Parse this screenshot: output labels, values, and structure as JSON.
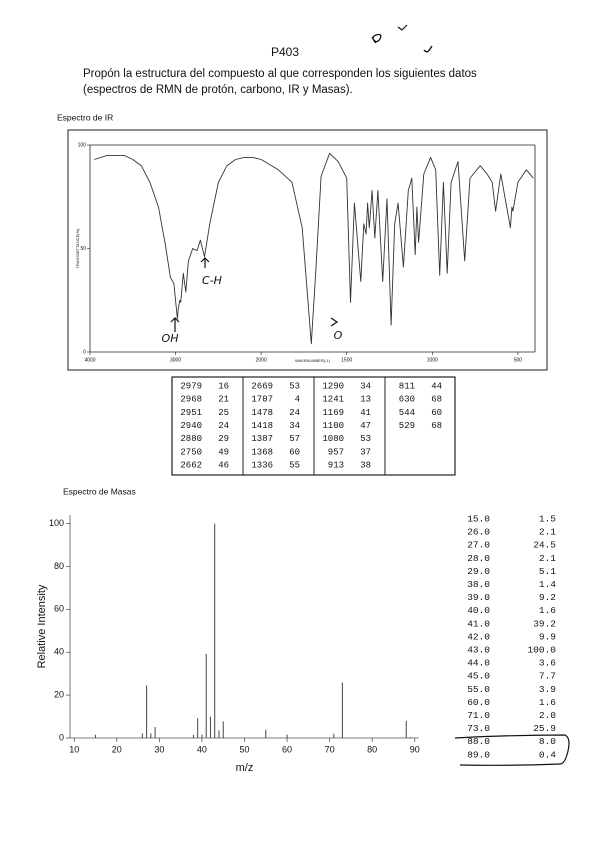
{
  "header": {
    "code": "P403"
  },
  "intro": {
    "lines": [
      "Propón la estructura del compuesto al que corresponden los siguientes datos",
      "(espectros de RMN de protón, carbono, IR y Masas)."
    ]
  },
  "ir_section": {
    "title": "Espectro de IR"
  },
  "mass_section": {
    "title": "Espectro de Masas"
  },
  "chart_data": [
    {
      "type": "line",
      "x_label": "WAVENUMBER(-1)",
      "y_label": "TRANSMITTANCE(%)",
      "xlim": [
        4000,
        400
      ],
      "ylim": [
        0,
        100
      ],
      "xticks": [
        4000,
        3000,
        2000,
        1500,
        1000,
        500
      ],
      "yticks": [
        0,
        50,
        100
      ],
      "color": "#333333",
      "x": [
        3950,
        3800,
        3600,
        3500,
        3400,
        3300,
        3200,
        3120,
        3060,
        3020,
        2979,
        2968,
        2951,
        2940,
        2910,
        2880,
        2850,
        2800,
        2750,
        2710,
        2662,
        2600,
        2500,
        2400,
        2300,
        2200,
        2100,
        2000,
        1900,
        1820,
        1760,
        1707,
        1680,
        1650,
        1600,
        1550,
        1500,
        1478,
        1455,
        1418,
        1400,
        1387,
        1378,
        1368,
        1352,
        1336,
        1318,
        1290,
        1265,
        1241,
        1220,
        1200,
        1169,
        1140,
        1120,
        1100,
        1090,
        1080,
        1050,
        1010,
        980,
        957,
        935,
        913,
        890,
        850,
        811,
        780,
        720,
        680,
        650,
        630,
        600,
        544,
        535,
        529,
        500,
        450,
        410
      ],
      "y": [
        93,
        95,
        95,
        93,
        90,
        82,
        70,
        52,
        36,
        33,
        16,
        21,
        25,
        24,
        38,
        29,
        44,
        50,
        49,
        54,
        46,
        62,
        82,
        90,
        93,
        94,
        94,
        93,
        88,
        82,
        60,
        4,
        40,
        85,
        96,
        92,
        84,
        24,
        72,
        34,
        62,
        57,
        72,
        60,
        78,
        55,
        78,
        34,
        74,
        13,
        62,
        72,
        41,
        78,
        84,
        47,
        70,
        53,
        86,
        94,
        88,
        37,
        82,
        38,
        82,
        92,
        44,
        84,
        90,
        86,
        82,
        68,
        86,
        60,
        70,
        68,
        82,
        88,
        84
      ],
      "annotations": [
        "C-H",
        "OH",
        "O"
      ]
    },
    {
      "type": "bar",
      "x_label": "m/z",
      "y_label": "Relative Intensity",
      "xlim": [
        9,
        91
      ],
      "ylim": [
        0,
        104
      ],
      "xticks": [
        10,
        20,
        30,
        40,
        50,
        60,
        70,
        80,
        90
      ],
      "yticks": [
        0,
        20,
        40,
        60,
        80,
        100
      ],
      "color": "#444444",
      "x": [
        15,
        26,
        27,
        28,
        29,
        38,
        39,
        40,
        41,
        42,
        43,
        44,
        45,
        55,
        60,
        71,
        73,
        88,
        89
      ],
      "values": [
        1.5,
        2.1,
        24.5,
        2.1,
        5.1,
        1.4,
        9.2,
        1.6,
        39.2,
        9.9,
        100.0,
        3.6,
        7.7,
        3.9,
        1.6,
        2.0,
        25.9,
        8.0,
        0.4
      ]
    }
  ],
  "ir_table": {
    "groups": [
      [
        [
          2979,
          16
        ],
        [
          2968,
          21
        ],
        [
          2951,
          25
        ],
        [
          2940,
          24
        ],
        [
          2880,
          29
        ],
        [
          2750,
          49
        ],
        [
          2662,
          46
        ]
      ],
      [
        [
          2669,
          53
        ],
        [
          1707,
          4
        ],
        [
          1478,
          24
        ],
        [
          1418,
          34
        ],
        [
          1387,
          57
        ],
        [
          1368,
          60
        ],
        [
          1336,
          55
        ]
      ],
      [
        [
          1290,
          34
        ],
        [
          1241,
          13
        ],
        [
          1169,
          41
        ],
        [
          1100,
          47
        ],
        [
          1080,
          53
        ],
        [
          957,
          37
        ],
        [
          913,
          38
        ]
      ],
      [
        [
          811,
          44
        ],
        [
          630,
          68
        ],
        [
          544,
          60
        ],
        [
          529,
          68
        ]
      ]
    ]
  },
  "mass_table": {
    "rows": [
      [
        "15.0",
        "1.5"
      ],
      [
        "26.0",
        "2.1"
      ],
      [
        "27.0",
        "24.5"
      ],
      [
        "28.0",
        "2.1"
      ],
      [
        "29.0",
        "5.1"
      ],
      [
        "38.0",
        "1.4"
      ],
      [
        "39.0",
        "9.2"
      ],
      [
        "40.0",
        "1.6"
      ],
      [
        "41.0",
        "39.2"
      ],
      [
        "42.0",
        "9.9"
      ],
      [
        "43.0",
        "100.0"
      ],
      [
        "44.0",
        "3.6"
      ],
      [
        "45.0",
        "7.7"
      ],
      [
        "55.0",
        "3.9"
      ],
      [
        "60.0",
        "1.6"
      ],
      [
        "71.0",
        "2.0"
      ],
      [
        "73.0",
        "25.9"
      ],
      [
        "88.0",
        "8.0"
      ],
      [
        "89.0",
        "0.4"
      ]
    ]
  }
}
